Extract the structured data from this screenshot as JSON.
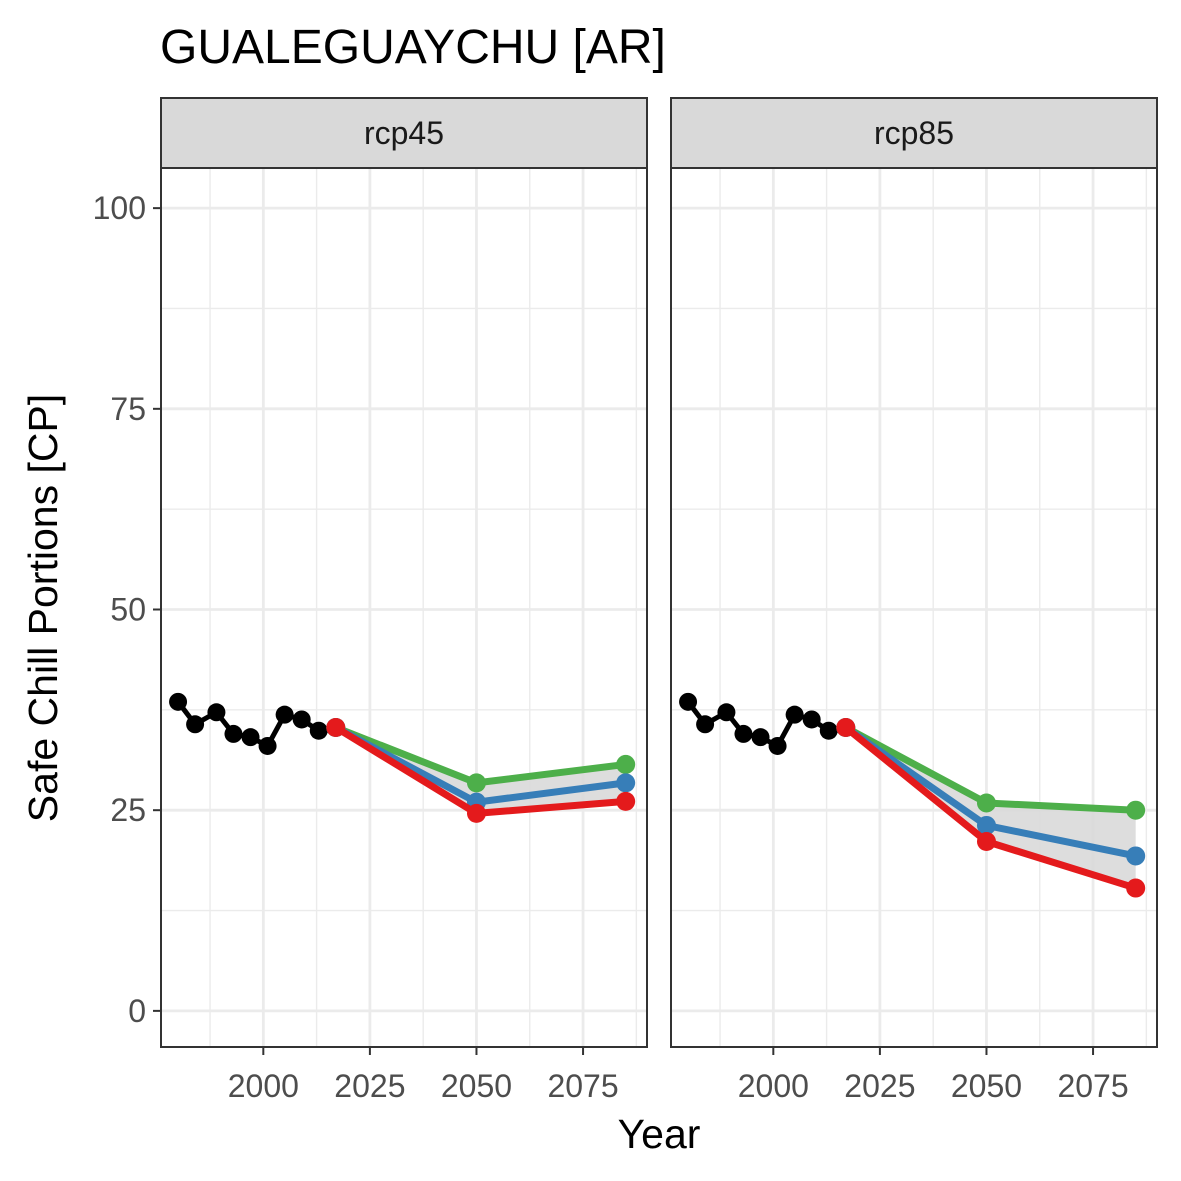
{
  "chart_data": {
    "type": "line",
    "title": "GUALEGUAYCHU [AR]",
    "xlabel": "Year",
    "ylabel": "Safe Chill Portions [CP]",
    "xlim": [
      1976,
      2090
    ],
    "ylim": [
      -4.5,
      105
    ],
    "x_ticks": [
      2000,
      2025,
      2050,
      2075
    ],
    "y_ticks": [
      0,
      25,
      50,
      75,
      100
    ],
    "grid": true,
    "legend": "none",
    "colors": {
      "historic": "#000000",
      "optimistic": "#4daf4a",
      "median": "#377eb8",
      "pessimistic": "#e41a1c",
      "ribbon": "#d9d9d9"
    },
    "panels": [
      {
        "label": "rcp45",
        "historic": {
          "x": [
            1980,
            1984,
            1989,
            1993,
            1997,
            2001,
            2005,
            2009,
            2013,
            2017
          ],
          "y": [
            38.5,
            35.7,
            37.2,
            34.5,
            34.1,
            33.0,
            36.9,
            36.3,
            34.9,
            35.3
          ]
        },
        "future": {
          "x": [
            2017,
            2050,
            2085
          ],
          "optimistic": [
            35.3,
            28.4,
            30.7
          ],
          "median": [
            35.3,
            26.0,
            28.4
          ],
          "pessimistic": [
            35.3,
            24.6,
            26.1
          ]
        }
      },
      {
        "label": "rcp85",
        "historic": {
          "x": [
            1980,
            1984,
            1989,
            1993,
            1997,
            2001,
            2005,
            2009,
            2013,
            2017
          ],
          "y": [
            38.5,
            35.7,
            37.2,
            34.5,
            34.1,
            33.0,
            36.9,
            36.3,
            34.9,
            35.3
          ]
        },
        "future": {
          "x": [
            2017,
            2050,
            2085
          ],
          "optimistic": [
            35.3,
            25.9,
            25.0
          ],
          "median": [
            35.3,
            23.1,
            19.3
          ],
          "pessimistic": [
            35.3,
            21.1,
            15.3
          ]
        }
      }
    ]
  }
}
